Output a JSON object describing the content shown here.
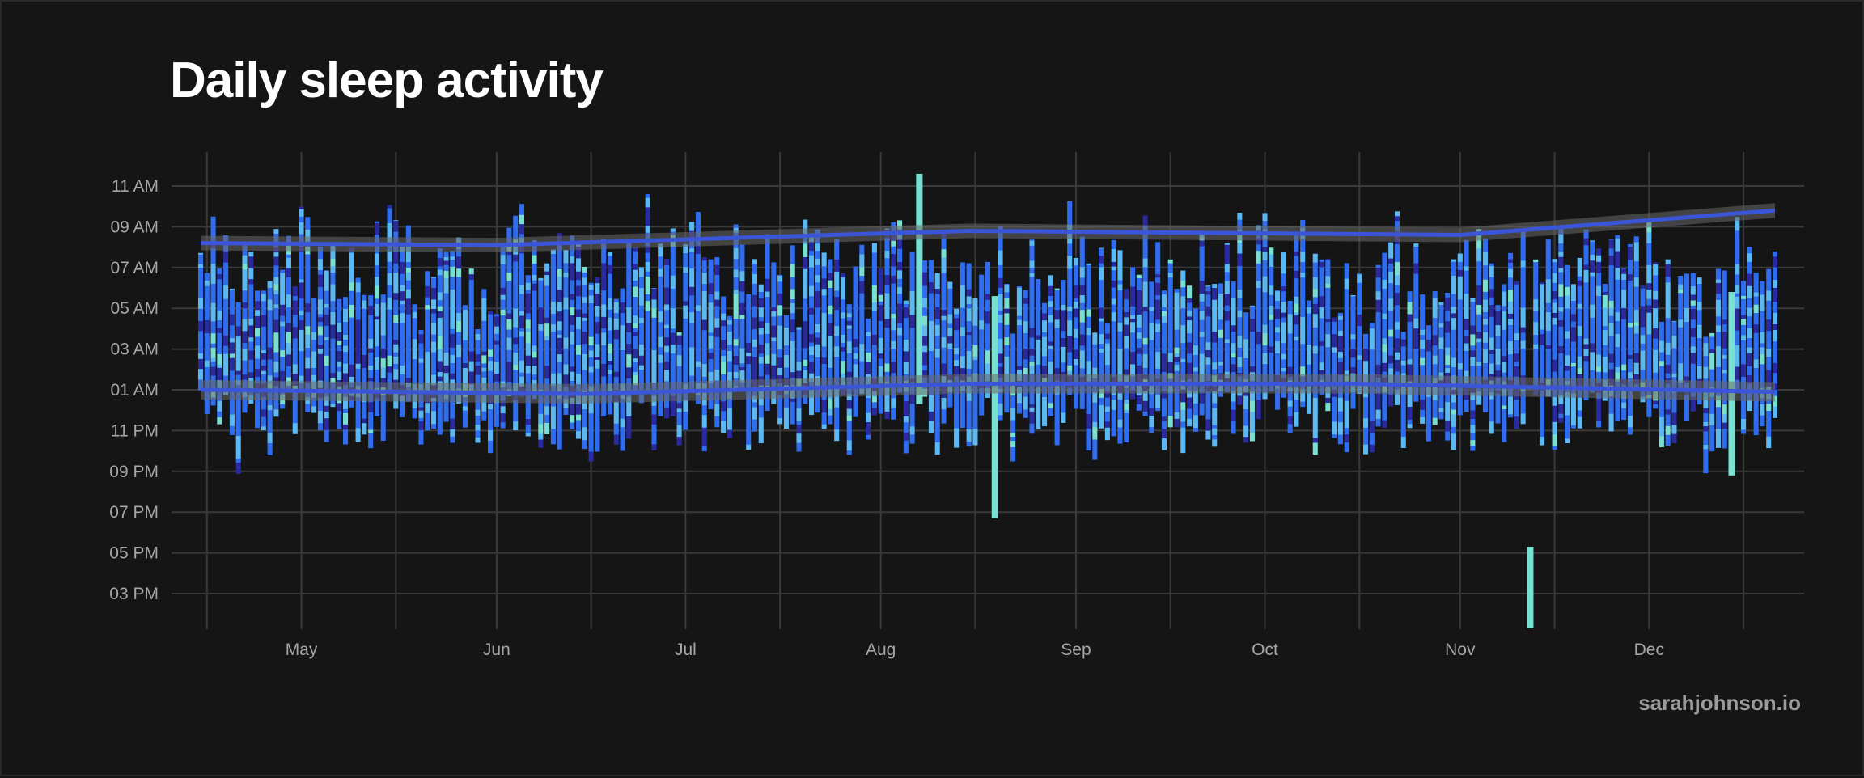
{
  "title": "Daily sleep activity",
  "credit": "sarahjohnson.io",
  "colors": {
    "background": "#151515",
    "grid": "#3a3a3a",
    "stage_deep": "#2a2aa0",
    "stage_core": "#2f6cf0",
    "stage_rem": "#5cb8f2",
    "stage_awake": "#78e0d0",
    "trend": "#3b55d8",
    "trend_band": "#6a6a6a"
  },
  "chart_data": {
    "type": "bar",
    "subtype": "daily sleep range (floating bars)",
    "title": "Daily sleep activity",
    "x_range": [
      "2023-04-15",
      "2023-12-21"
    ],
    "x_ticks": [
      "May",
      "Jun",
      "Jul",
      "Aug",
      "Sep",
      "Oct",
      "Nov",
      "Dec"
    ],
    "y_ticks": [
      "11 AM",
      "09 AM",
      "07 AM",
      "05 AM",
      "03 AM",
      "01 AM",
      "11 PM",
      "09 PM",
      "07 PM",
      "05 PM",
      "03 PM"
    ],
    "grid": true,
    "trend_lines": [
      {
        "points": [
          [
            "2023-04-15",
            8.2
          ],
          [
            "2023-06-01",
            8.1
          ],
          [
            "2023-08-15",
            8.8
          ],
          [
            "2023-11-01",
            8.6
          ],
          [
            "2023-12-21",
            9.8
          ]
        ]
      },
      {
        "points": [
          [
            "2023-04-15",
            1.0
          ],
          [
            "2023-06-15",
            0.8
          ],
          [
            "2023-08-15",
            1.3
          ],
          [
            "2023-10-15",
            1.3
          ],
          [
            "2023-12-21",
            0.9
          ]
        ]
      }
    ],
    "outliers": [
      {
        "date": "2023-08-07",
        "bedtime_hours": 0.3,
        "wake_hours": 11.6
      },
      {
        "date": "2023-08-19",
        "bedtime_hours": -5.3,
        "wake_hours": 5.6
      },
      {
        "date": "2023-11-12",
        "bedtime_hours": -10.7,
        "wake_hours": -6.7
      },
      {
        "date": "2023-12-14",
        "bedtime_hours": -3.2,
        "wake_hours": 5.8
      }
    ]
  }
}
